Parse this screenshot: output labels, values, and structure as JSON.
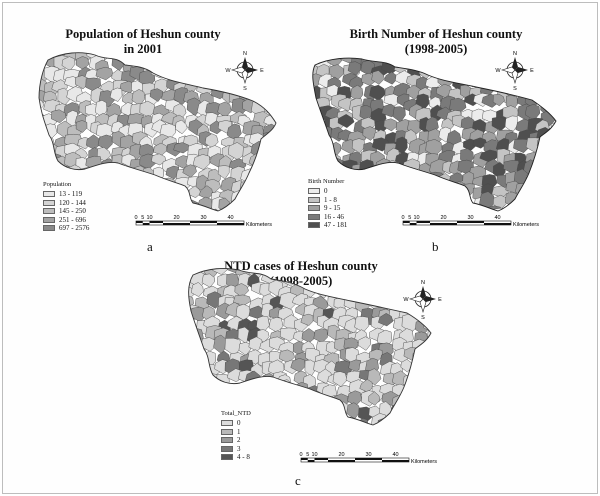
{
  "panels": {
    "a": {
      "title_line1": "Population of Heshun county",
      "title_line2": "in 2001",
      "legend_title": "Population",
      "classes": [
        "13 - 119",
        "120 - 144",
        "145 - 250",
        "251 - 696",
        "697 - 2576"
      ],
      "class_colors": [
        "#e8e8e8",
        "#d4d4d4",
        "#bdbdbd",
        "#a3a3a3",
        "#8a8a8a"
      ],
      "label": "a"
    },
    "b": {
      "title_line1": "Birth Number of Heshun county",
      "title_line2": "(1998-2005)",
      "legend_title": "Birth Number",
      "classes": [
        "0",
        "1 - 8",
        "9 - 15",
        "16 - 46",
        "47 - 181"
      ],
      "class_colors": [
        "#ececec",
        "#c4c4c4",
        "#a0a0a0",
        "#7a7a7a",
        "#4f4f4f"
      ],
      "label": "b"
    },
    "c": {
      "title_line1": "NTD cases of Heshun county",
      "title_line2": "(1998-2005)",
      "legend_title": "Total_NTD",
      "classes": [
        "0",
        "1",
        "2",
        "3",
        "4 - 8"
      ],
      "class_colors": [
        "#dcdcdc",
        "#b9b9b9",
        "#9a9a9a",
        "#777777",
        "#555555"
      ],
      "label": "c"
    }
  },
  "north_arrow": {
    "n": "N",
    "s": "S",
    "e": "E",
    "w": "W"
  },
  "scalebar": {
    "ticks": [
      "0",
      "5",
      "10",
      "20",
      "30",
      "40"
    ],
    "unit": "Kilometers"
  }
}
